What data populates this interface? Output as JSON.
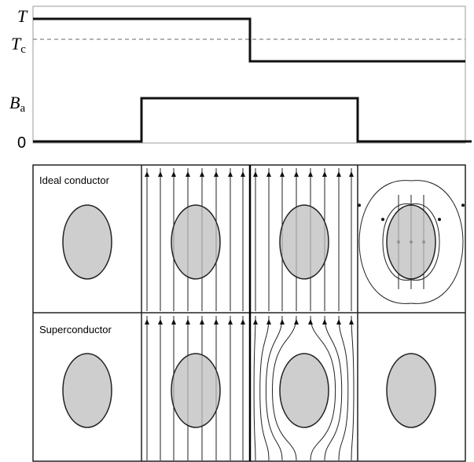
{
  "axis_labels": {
    "t": "T",
    "tc": {
      "main": "T",
      "sub": "c"
    },
    "ba": {
      "main": "B",
      "sub": "a"
    },
    "zero": "0"
  },
  "rows": [
    "Ideal conductor",
    "Superconductor"
  ]
}
